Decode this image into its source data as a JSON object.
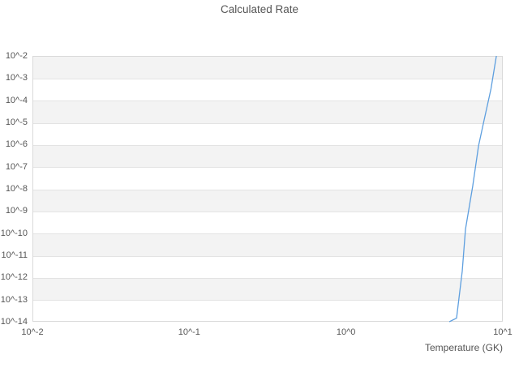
{
  "title": "Calculated Rate",
  "x_axis": {
    "label": "Temperature (GK)",
    "tick_labels": [
      "10^-2",
      "10^-1",
      "10^0",
      "10^1"
    ],
    "tick_values": [
      0.01,
      0.1,
      1,
      10
    ]
  },
  "y_axis": {
    "tick_labels": [
      "10^-2",
      "10^-3",
      "10^-4",
      "10^-5",
      "10^-6",
      "10^-7",
      "10^-8",
      "10^-9",
      "10^-10",
      "10^-11",
      "10^-12",
      "10^-13",
      "10^-14"
    ]
  },
  "colors": {
    "line": "#5e9fdf",
    "band": "#f3f3f3",
    "grid": "#e3e3e3",
    "border": "#d9d9d9",
    "text": "#555555",
    "background": "#ffffff"
  },
  "chart_data": {
    "type": "line",
    "title": "Calculated Rate",
    "xlabel": "Temperature (GK)",
    "ylabel": "",
    "xscale": "log",
    "yscale": "log",
    "xlim": [
      0.01,
      10
    ],
    "ylim": [
      1e-14,
      0.01
    ],
    "grid": "horizontal gridlines with alternating decade shading bands",
    "legend": false,
    "series": [
      {
        "name": "Calculated Rate",
        "x": [
          4.56,
          5.07,
          5.51,
          5.78,
          6.43,
          7.0,
          7.57,
          8.4,
          9.1
        ],
        "y": [
          1e-14,
          1.45e-14,
          1.9e-12,
          1.5e-10,
          1.3e-08,
          8.7e-07,
          1.1e-05,
          0.00032,
          0.01
        ]
      }
    ]
  }
}
